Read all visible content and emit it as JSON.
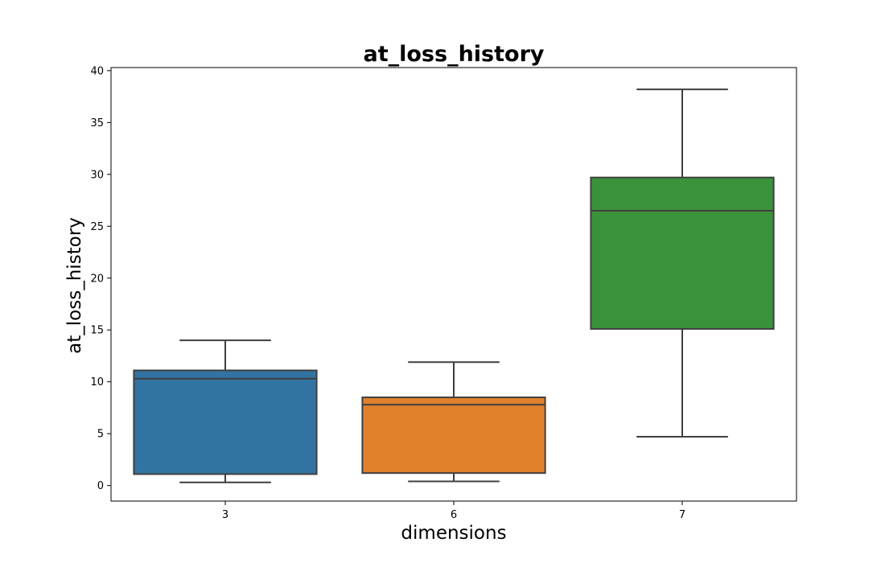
{
  "chart_data": {
    "type": "box",
    "title": "at_loss_history",
    "xlabel": "dimensions",
    "ylabel": "at_loss_history",
    "ylim": [
      -1.5,
      40.3
    ],
    "yticks": [
      0,
      5,
      10,
      15,
      20,
      25,
      30,
      35,
      40
    ],
    "grid": false,
    "legend": "none",
    "categories": [
      "3",
      "6",
      "7"
    ],
    "boxes": [
      {
        "category": "3",
        "whisker_low": 0.3,
        "q1": 1.1,
        "median": 10.3,
        "q3": 11.1,
        "whisker_high": 14.0,
        "color": "#3274a1"
      },
      {
        "category": "6",
        "whisker_low": 0.4,
        "q1": 1.2,
        "median": 7.8,
        "q3": 8.5,
        "whisker_high": 11.9,
        "color": "#e1812c"
      },
      {
        "category": "7",
        "whisker_low": 4.7,
        "q1": 15.1,
        "median": 26.5,
        "q3": 29.7,
        "whisker_high": 38.2,
        "color": "#3a923a"
      }
    ]
  }
}
